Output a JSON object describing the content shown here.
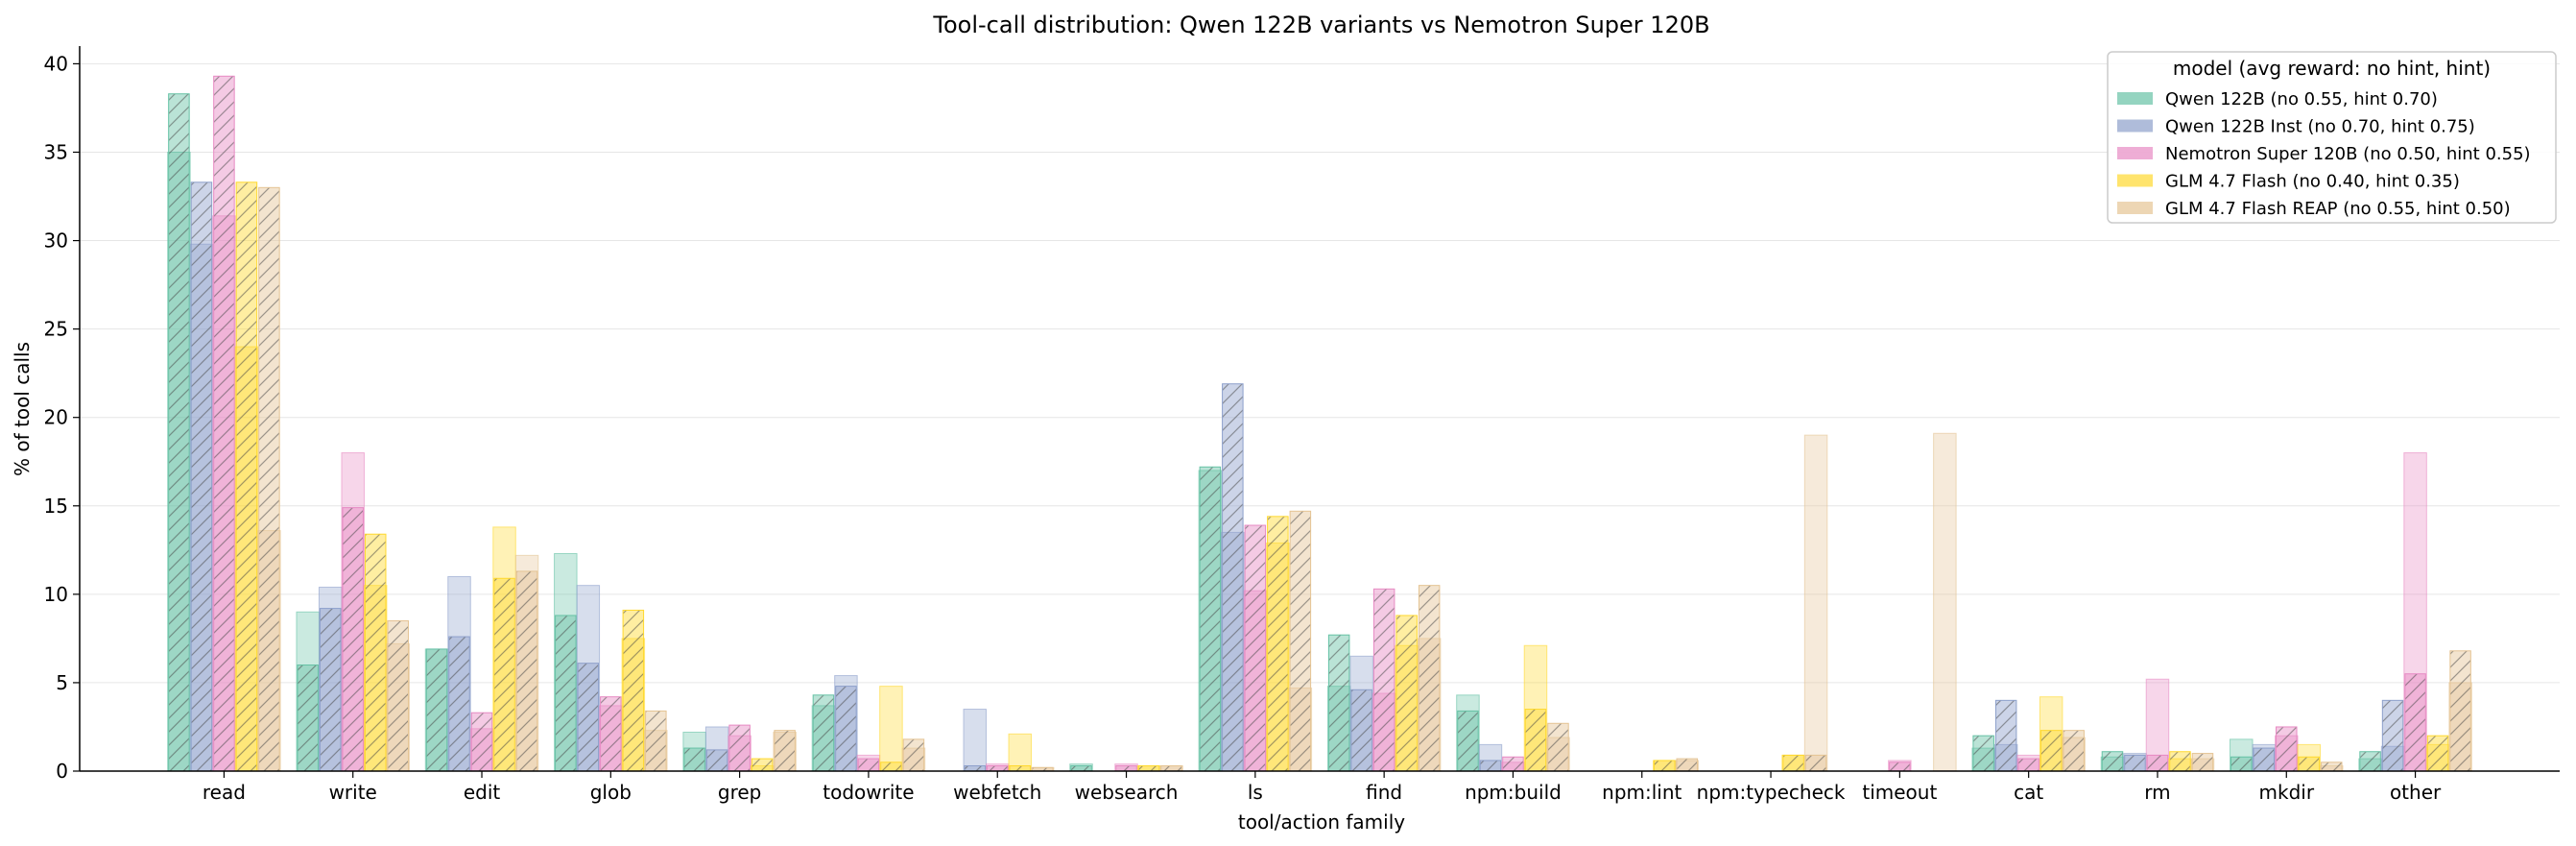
{
  "chart_data": {
    "type": "bar",
    "title": "Tool-call distribution: Qwen 122B variants vs Nemotron Super 120B",
    "xlabel": "tool/action family",
    "ylabel": "% of tool calls",
    "ylim": [
      0,
      41
    ],
    "yticks": [
      0,
      5,
      10,
      15,
      20,
      25,
      30,
      35,
      40
    ],
    "grid": "horizontal",
    "legend_placement": "top-right",
    "legend_title": "model (avg reward: no hint, hint)",
    "categories": [
      "read",
      "write",
      "edit",
      "glob",
      "grep",
      "todowrite",
      "webfetch",
      "websearch",
      "ls",
      "find",
      "npm:build",
      "npm:lint",
      "npm:typecheck",
      "timeout",
      "cat",
      "rm",
      "mkdir",
      "other"
    ],
    "series": [
      {
        "name": "Qwen 122B (no 0.55, hint 0.70)",
        "color": "#66c2a5",
        "no_hint": [
          35.0,
          9.0,
          6.9,
          12.3,
          2.2,
          3.7,
          0,
          0.4,
          17.0,
          4.8,
          4.3,
          0,
          0,
          0,
          1.3,
          0.8,
          1.8,
          0.7
        ],
        "hint": [
          38.3,
          6.0,
          6.9,
          8.8,
          1.3,
          4.3,
          0,
          0.3,
          17.2,
          7.7,
          3.4,
          0,
          0,
          0,
          2.0,
          1.1,
          0.8,
          1.1
        ]
      },
      {
        "name": "Qwen 122B Inst (no 0.70, hint 0.75)",
        "color": "#8da0cb",
        "no_hint": [
          29.8,
          10.4,
          11.0,
          10.5,
          2.5,
          5.4,
          3.5,
          0,
          13.5,
          6.5,
          1.5,
          0,
          0,
          0,
          1.5,
          1.0,
          1.5,
          1.4
        ],
        "hint": [
          33.3,
          9.2,
          7.6,
          6.1,
          1.2,
          4.8,
          0.3,
          0,
          21.9,
          4.6,
          0.6,
          0,
          0,
          0,
          4.0,
          0.9,
          1.3,
          4.0
        ]
      },
      {
        "name": "Nemotron Super 120B (no 0.50, hint 0.55)",
        "color": "#e78ac3",
        "no_hint": [
          31.4,
          18.0,
          2.4,
          3.7,
          2.0,
          0.9,
          0.4,
          0.4,
          10.2,
          4.4,
          0.5,
          0,
          0,
          0.6,
          0.9,
          5.2,
          2.0,
          18.0
        ],
        "hint": [
          39.3,
          14.9,
          3.3,
          4.2,
          2.6,
          0.7,
          0.3,
          0.3,
          13.9,
          10.3,
          0.8,
          0,
          0,
          0.5,
          0.7,
          0.9,
          2.5,
          5.5
        ]
      },
      {
        "name": "GLM 4.7 Flash (no 0.40, hint 0.35)",
        "color": "#ffd92f",
        "no_hint": [
          24.0,
          10.5,
          13.8,
          7.5,
          0.3,
          4.8,
          2.1,
          0.3,
          12.9,
          7.1,
          7.1,
          0.6,
          0.9,
          0,
          4.2,
          0.7,
          1.5,
          1.5
        ],
        "hint": [
          33.3,
          13.4,
          10.9,
          9.1,
          0.7,
          0.5,
          0.3,
          0.3,
          14.4,
          8.8,
          3.5,
          0.6,
          0.9,
          0,
          2.3,
          1.1,
          0.8,
          2.0
        ]
      },
      {
        "name": "GLM 4.7 Flash REAP (no 0.55, hint 0.50)",
        "color": "#e5c494",
        "no_hint": [
          13.6,
          7.2,
          12.2,
          2.3,
          2.2,
          1.3,
          0.2,
          0.3,
          4.7,
          7.5,
          1.9,
          0.6,
          19.0,
          19.1,
          1.9,
          0.7,
          0.3,
          5.0
        ],
        "hint": [
          33.0,
          8.5,
          11.3,
          3.4,
          2.3,
          1.8,
          0.2,
          0.3,
          14.7,
          10.5,
          2.7,
          0.7,
          0.9,
          0,
          2.3,
          1.0,
          0.5,
          6.8
        ]
      }
    ]
  }
}
